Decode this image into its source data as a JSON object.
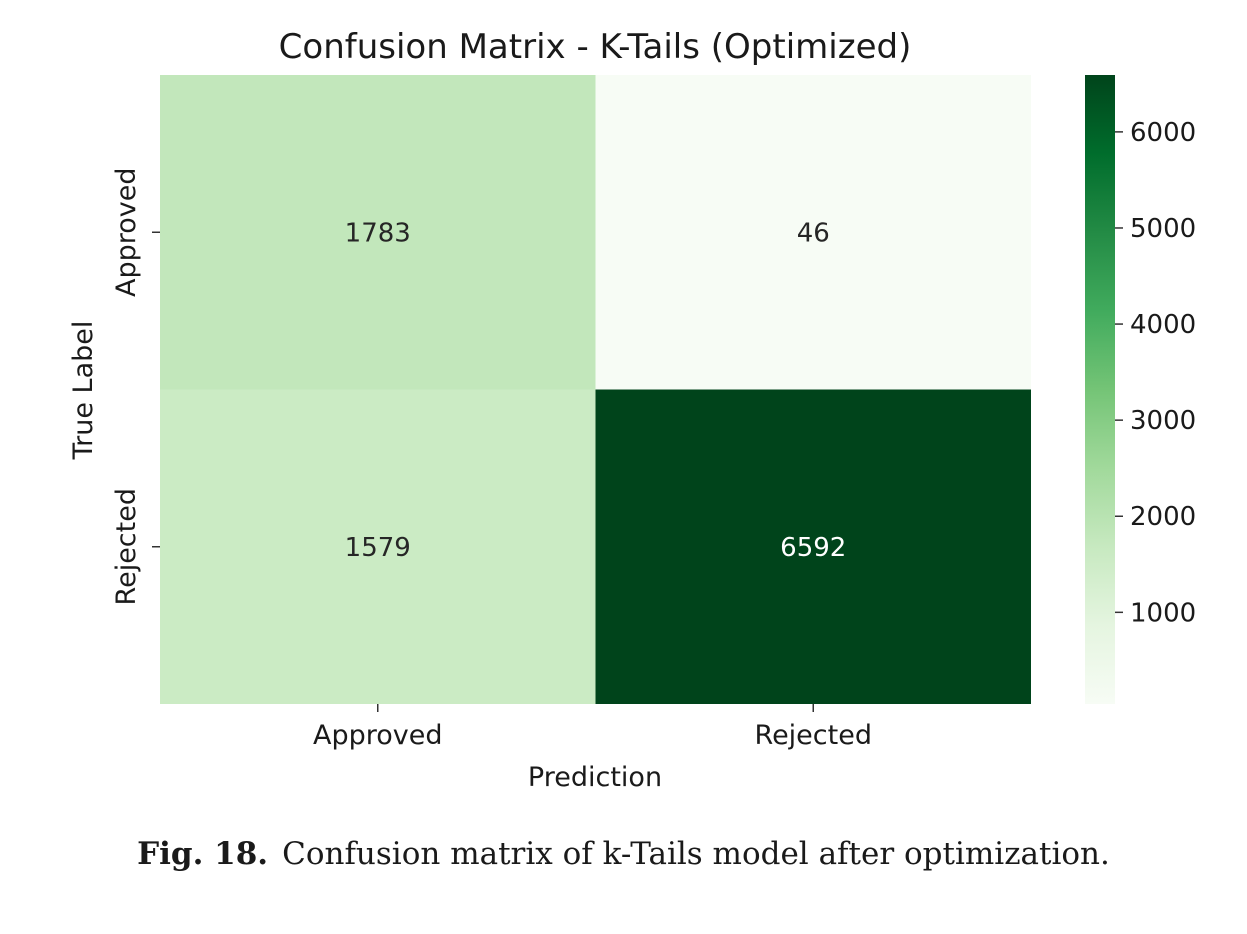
{
  "chart_data": {
    "type": "heatmap",
    "title": "Confusion Matrix - K-Tails (Optimized)",
    "xlabel": "Prediction",
    "ylabel": "True Label",
    "x_categories": [
      "Approved",
      "Rejected"
    ],
    "y_categories": [
      "Approved",
      "Rejected"
    ],
    "values": [
      [
        1783,
        46
      ],
      [
        1579,
        6592
      ]
    ],
    "colormap": "Greens",
    "colorbar": {
      "range": [
        46,
        6592
      ],
      "ticks": [
        1000,
        2000,
        3000,
        4000,
        5000,
        6000
      ],
      "tick_labels": [
        "1000",
        "2000",
        "3000",
        "4000",
        "5000",
        "6000"
      ]
    }
  },
  "caption": {
    "label": "Fig. 18.",
    "text": "Confusion matrix of k-Tails model after optimization."
  }
}
